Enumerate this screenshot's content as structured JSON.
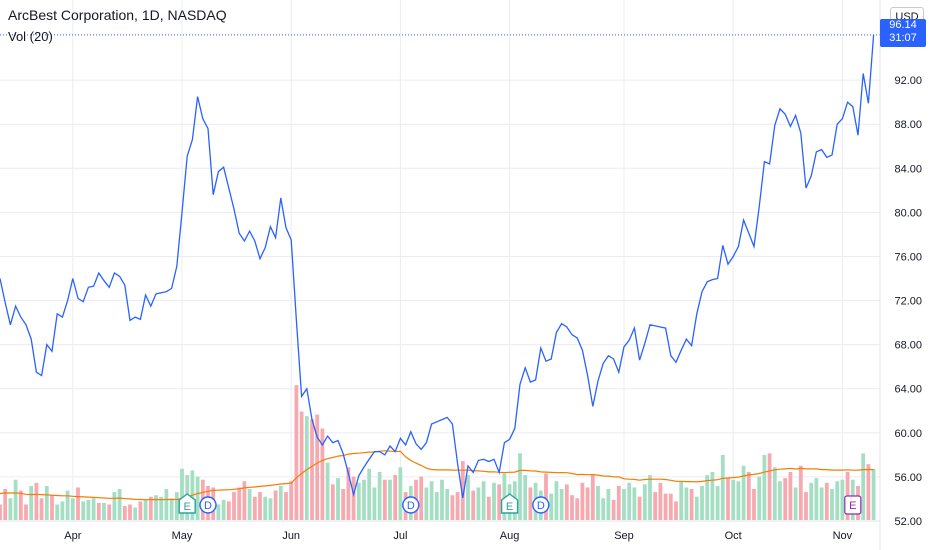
{
  "header": {
    "title": "ArcBest Corporation, 1D, NASDAQ",
    "indicator": "Vol (20)",
    "currency": "USD"
  },
  "last_price": {
    "price": "96.14",
    "countdown": "31:07",
    "color": "#2962ff"
  },
  "colors": {
    "price_line": "#2962ff",
    "volume_up": "#a5dfc3",
    "volume_down": "#f7a9b0",
    "volume_ma": "#f57c00",
    "earnings_marker": "#26a69a",
    "dividend_marker": "#2962ff",
    "future_earnings_marker": "#9c27b0",
    "grid": "#e9ecf2"
  },
  "chart_data": {
    "type": "line",
    "ylim": [
      52,
      97
    ],
    "y_ticks": [
      "92.00",
      "88.00",
      "84.00",
      "80.00",
      "76.00",
      "72.00",
      "68.00",
      "64.00",
      "60.00",
      "56.00",
      "52.00"
    ],
    "x_ticks": [
      {
        "label": "Apr",
        "index": 14
      },
      {
        "label": "May",
        "index": 35
      },
      {
        "label": "Jun",
        "index": 56
      },
      {
        "label": "Jul",
        "index": 77
      },
      {
        "label": "Aug",
        "index": 98
      },
      {
        "label": "Sep",
        "index": 120
      },
      {
        "label": "Oct",
        "index": 141
      },
      {
        "label": "Nov",
        "index": 162
      }
    ],
    "series": [
      {
        "values": [
          74.0,
          71.8,
          69.8,
          71.5,
          70.5,
          69.8,
          68.5,
          65.5,
          65.2,
          68.0,
          67.4,
          70.8,
          70.5,
          72.0,
          74.0,
          72.2,
          71.9,
          73.2,
          73.3,
          74.5,
          73.8,
          73.2,
          74.5,
          74.2,
          73.4,
          70.2,
          70.5,
          70.3,
          72.5,
          71.5,
          72.6,
          72.7,
          72.8,
          73.1,
          75.1,
          80.0,
          85.1,
          86.6,
          90.5,
          88.5,
          87.6,
          81.6,
          83.7,
          84.1,
          82.2,
          80.3,
          78.1,
          77.4,
          78.3,
          77.4,
          75.8,
          76.8,
          78.7,
          77.7,
          81.3,
          78.6,
          77.5,
          70.2,
          63.3,
          64.0,
          61.2,
          59.6,
          58.9,
          59.7,
          59.1,
          59.3,
          58.1,
          56.3,
          54.4,
          56.1,
          56.9,
          57.6,
          58.3,
          58.3,
          58.0,
          58.8,
          58.3,
          59.5,
          58.9,
          60.1,
          59.0,
          58.5,
          59.1,
          60.8,
          61.0,
          61.2,
          61.4,
          60.8,
          57.2,
          54.1,
          57.0,
          56.4,
          57.5,
          57.6,
          57.4,
          57.6,
          56.4,
          59.1,
          59.4,
          60.4,
          64.4,
          65.9,
          64.6,
          64.8,
          67.7,
          66.5,
          66.7,
          69.1,
          69.9,
          69.6,
          68.9,
          68.6,
          67.5,
          65.2,
          62.4,
          64.7,
          66.3,
          67.0,
          66.7,
          65.5,
          67.8,
          68.4,
          69.5,
          66.6,
          68.1,
          69.8,
          69.7,
          69.6,
          69.5,
          67.0,
          66.4,
          67.5,
          68.5,
          67.9,
          70.8,
          72.8,
          73.7,
          73.9,
          74.0,
          77.0,
          75.3,
          76.0,
          76.9,
          79.3,
          78.1,
          76.9,
          80.5,
          84.6,
          84.4,
          87.9,
          89.4,
          88.9,
          87.8,
          88.8,
          87.2,
          82.2,
          83.3,
          85.5,
          85.7,
          85.0,
          85.2,
          88.0,
          88.5,
          90.0,
          89.6,
          87.0,
          92.6,
          89.9,
          96.1
        ]
      }
    ],
    "volume": {
      "label": "Vol (20)",
      "values": [
        1.0,
        2.0,
        1.4,
        2.6,
        1.9,
        1.0,
        2.2,
        2.4,
        1.4,
        2.2,
        1.6,
        1.0,
        1.2,
        1.9,
        1.4,
        2.1,
        1.2,
        1.3,
        1.4,
        1.1,
        1.1,
        1.0,
        1.8,
        2.0,
        0.9,
        1.0,
        0.8,
        1.2,
        1.3,
        1.5,
        1.6,
        1.5,
        2.0,
        1.4,
        1.8,
        3.3,
        2.9,
        3.2,
        2.8,
        2.6,
        2.2,
        2.1,
        1.0,
        1.3,
        1.2,
        1.8,
        2.1,
        2.5,
        2.0,
        1.5,
        1.8,
        1.5,
        1.4,
        1.9,
        2.2,
        1.8,
        2.5,
        8.7,
        7.0,
        6.7,
        6.5,
        6.8,
        5.9,
        3.7,
        2.3,
        2.7,
        2.0,
        3.4,
        2.8,
        2.4,
        2.6,
        3.3,
        2.1,
        3.1,
        2.6,
        2.6,
        2.9,
        3.4,
        1.8,
        2.2,
        2.6,
        2.8,
        2.1,
        2.5,
        1.8,
        2.6,
        2.0,
        1.6,
        1.8,
        3.8,
        2.9,
        1.9,
        2.1,
        2.5,
        1.5,
        2.4,
        2.3,
        3.0,
        2.3,
        2.5,
        4.3,
        2.9,
        2.1,
        2.4,
        1.9,
        3.0,
        1.7,
        2.5,
        2.0,
        2.3,
        1.6,
        1.4,
        2.4,
        2.1,
        2.9,
        2.2,
        1.4,
        2.0,
        1.3,
        2.2,
        2.0,
        2.4,
        2.1,
        1.5,
        2.3,
        2.9,
        1.8,
        2.4,
        1.7,
        1.7,
        1.2,
        2.5,
        2.1,
        2.0,
        1.5,
        2.2,
        2.9,
        3.1,
        2.2,
        4.2,
        2.7,
        2.6,
        2.5,
        3.5,
        3.1,
        2.0,
        2.8,
        4.2,
        4.3,
        3.4,
        2.5,
        2.7,
        3.1,
        2.1,
        3.5,
        1.8,
        2.4,
        2.7,
        2.1,
        2.4,
        2.0,
        2.5,
        2.6,
        3.1,
        2.6,
        2.2,
        4.3,
        3.6,
        3.3
      ],
      "up": [
        false,
        false,
        true,
        true,
        false,
        false,
        true,
        false,
        false,
        true,
        false,
        true,
        true,
        true,
        true,
        false,
        true,
        true,
        true,
        false,
        true,
        false,
        true,
        true,
        false,
        false,
        true,
        false,
        true,
        false,
        true,
        true,
        true,
        true,
        true,
        true,
        true,
        true,
        true,
        false,
        false,
        false,
        true,
        true,
        false,
        false,
        false,
        false,
        true,
        false,
        false,
        true,
        true,
        false,
        true,
        false,
        false,
        false,
        false,
        true,
        false,
        false,
        false,
        true,
        false,
        true,
        false,
        false,
        false,
        true,
        true,
        true,
        true,
        true,
        false,
        true,
        false,
        true,
        false,
        true,
        false,
        false,
        true,
        true,
        true,
        true,
        true,
        false,
        false,
        false,
        true,
        false,
        true,
        true,
        false,
        true,
        false,
        true,
        true,
        true,
        true,
        true,
        false,
        true,
        true,
        false,
        true,
        true,
        true,
        false,
        false,
        false,
        false,
        false,
        false,
        true,
        true,
        true,
        false,
        false,
        true,
        true,
        true,
        false,
        true,
        true,
        false,
        false,
        false,
        false,
        false,
        true,
        true,
        false,
        true,
        true,
        true,
        true,
        true,
        true,
        false,
        true,
        true,
        true,
        false,
        false,
        true,
        true,
        false,
        true,
        true,
        false,
        false,
        true,
        false,
        false,
        true,
        true,
        true,
        false,
        true,
        true,
        true,
        false,
        true,
        false,
        true,
        false,
        true
      ],
      "ma_values": [
        1.7,
        1.75,
        1.74,
        1.74,
        1.72,
        1.66,
        1.64,
        1.66,
        1.64,
        1.62,
        1.6,
        1.58,
        1.56,
        1.56,
        1.53,
        1.51,
        1.49,
        1.48,
        1.46,
        1.44,
        1.42,
        1.4,
        1.4,
        1.41,
        1.38,
        1.36,
        1.33,
        1.32,
        1.31,
        1.31,
        1.32,
        1.31,
        1.32,
        1.32,
        1.32,
        1.4,
        1.5,
        1.6,
        1.7,
        1.78,
        1.85,
        1.91,
        1.92,
        1.94,
        1.95,
        1.98,
        2.02,
        2.07,
        2.11,
        2.13,
        2.17,
        2.2,
        2.23,
        2.28,
        2.32,
        2.35,
        2.38,
        2.72,
        3.0,
        3.25,
        3.46,
        3.68,
        3.84,
        3.96,
        4.03,
        4.12,
        4.16,
        4.25,
        4.29,
        4.31,
        4.34,
        4.38,
        4.39,
        4.44,
        4.47,
        4.44,
        4.42,
        4.43,
        4.08,
        3.84,
        3.67,
        3.52,
        3.34,
        3.26,
        3.23,
        3.23,
        3.23,
        3.22,
        3.21,
        3.21,
        3.22,
        3.19,
        3.17,
        3.14,
        3.1,
        3.11,
        3.08,
        3.06,
        3.08,
        3.09,
        3.2,
        3.2,
        3.17,
        3.16,
        3.1,
        3.09,
        3.07,
        3.05,
        3.06,
        3.05,
        3.0,
        2.93,
        2.94,
        2.92,
        2.93,
        2.9,
        2.84,
        2.83,
        2.79,
        2.78,
        2.66,
        2.63,
        2.62,
        2.57,
        2.61,
        2.63,
        2.63,
        2.63,
        2.61,
        2.56,
        2.5,
        2.5,
        2.48,
        2.48,
        2.46,
        2.49,
        2.54,
        2.57,
        2.6,
        2.69,
        2.71,
        2.74,
        2.77,
        2.84,
        2.91,
        2.94,
        3.0,
        3.09,
        3.17,
        3.24,
        3.28,
        3.3,
        3.33,
        3.29,
        3.33,
        3.3,
        3.3,
        3.3,
        3.25,
        3.25,
        3.22,
        3.22,
        3.22,
        3.24,
        3.21,
        3.22,
        3.25,
        3.26,
        3.25
      ]
    },
    "events": [
      {
        "type": "earnings",
        "letter": "E",
        "index": 36
      },
      {
        "type": "dividend",
        "letter": "D",
        "index": 40
      },
      {
        "type": "dividend",
        "letter": "D",
        "index": 79
      },
      {
        "type": "earnings",
        "letter": "E",
        "index": 98
      },
      {
        "type": "dividend",
        "letter": "D",
        "index": 104
      },
      {
        "type": "future-earnings",
        "letter": "E",
        "index": 164
      }
    ],
    "grid": true
  }
}
